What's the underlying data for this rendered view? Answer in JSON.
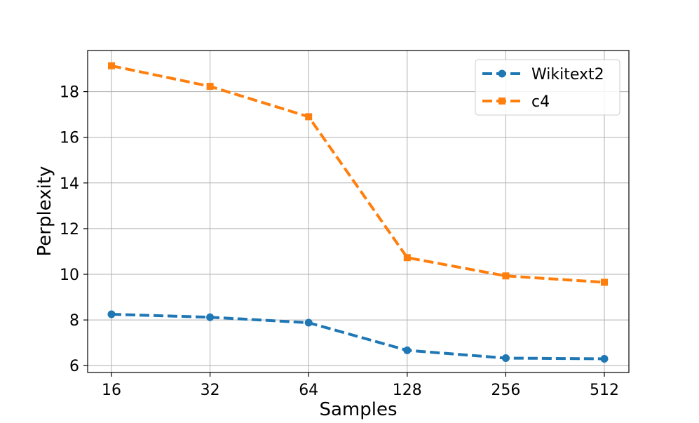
{
  "chart_data": {
    "type": "line",
    "title": "",
    "xlabel": "Samples",
    "ylabel": "Perplexity",
    "categories": [
      "16",
      "32",
      "64",
      "128",
      "256",
      "512"
    ],
    "yticks": [
      6,
      8,
      10,
      12,
      14,
      16,
      18
    ],
    "ylim": [
      5.7,
      19.8
    ],
    "grid": true,
    "legend_position": "top-right",
    "series": [
      {
        "name": "Wikitext2",
        "values": [
          8.25,
          8.12,
          7.88,
          6.67,
          6.33,
          6.3
        ],
        "color": "#1f77b4",
        "marker": "circle",
        "line_style": "dashed"
      },
      {
        "name": "c4",
        "values": [
          19.13,
          18.23,
          16.9,
          10.73,
          9.93,
          9.65
        ],
        "color": "#ff7f0e",
        "marker": "square",
        "line_style": "dashed"
      }
    ]
  }
}
